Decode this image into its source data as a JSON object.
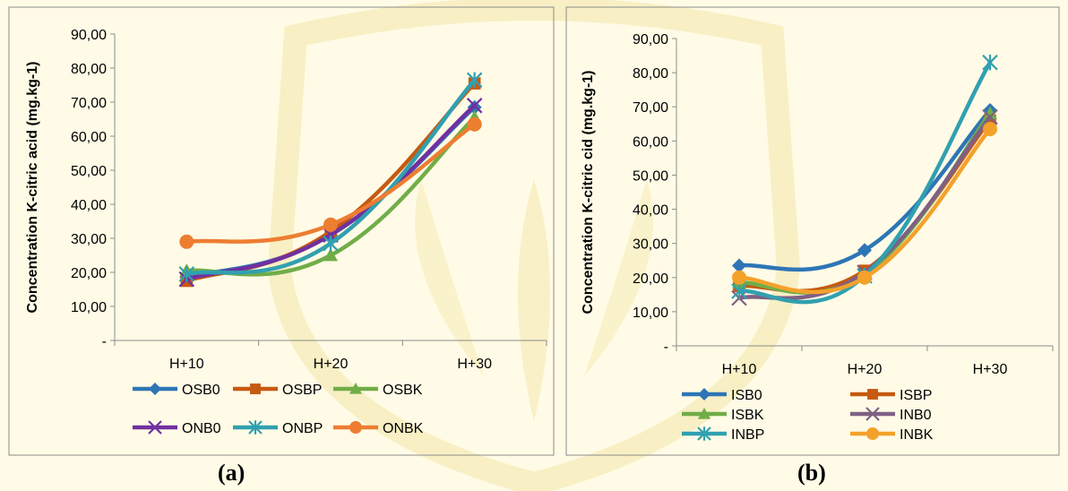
{
  "colors": {
    "background": "#fffbe6",
    "watermark": "#f3e6a8",
    "OSB0": "#2e75b6",
    "OSBP": "#c55a11",
    "OSBK": "#70ad47",
    "ONB0": "#7030a0",
    "ONBP": "#31a0b0",
    "ONBK": "#ed7d31",
    "ISB0": "#2e75b6",
    "ISBP": "#c55a11",
    "ISBK": "#70ad47",
    "INB0": "#7f6084",
    "INBP": "#31a0b0",
    "INBK": "#f4a12b"
  },
  "captions": {
    "a": "(a)",
    "b": "(b)"
  },
  "chart_data": [
    {
      "type": "line",
      "ylabel": "Concentration K-citric acid (mg.kg-1)",
      "xlabel": "",
      "categories": [
        "H+10",
        "H+20",
        "H+30"
      ],
      "ylim": [
        0,
        90
      ],
      "ytick_labels": [
        "-",
        "10,00",
        "20,00",
        "30,00",
        "40,00",
        "50,00",
        "60,00",
        "70,00",
        "80,00",
        "90,00"
      ],
      "legend_position": "bottom",
      "series": [
        {
          "name": "OSB0",
          "values": [
            18.5,
            31.0,
            68.5
          ],
          "marker": "diamond"
        },
        {
          "name": "OSBP",
          "values": [
            17.5,
            32.0,
            75.5
          ],
          "marker": "square"
        },
        {
          "name": "OSBK",
          "values": [
            20.5,
            25.0,
            65.5
          ],
          "marker": "triangle"
        },
        {
          "name": "ONB0",
          "values": [
            18.0,
            31.0,
            69.0
          ],
          "marker": "x"
        },
        {
          "name": "ONBP",
          "values": [
            19.5,
            28.5,
            76.5
          ],
          "marker": "star"
        },
        {
          "name": "ONBK",
          "values": [
            29.0,
            34.0,
            63.5
          ],
          "marker": "circle"
        }
      ]
    },
    {
      "type": "line",
      "ylabel": "Concentration K-citric cid (mg.kg-1)",
      "xlabel": "",
      "categories": [
        "H+10",
        "H+20",
        "H+30"
      ],
      "ylim": [
        0,
        90
      ],
      "ytick_labels": [
        "-",
        "10,00",
        "20,00",
        "30,00",
        "40,00",
        "50,00",
        "60,00",
        "70,00",
        "80,00",
        "90,00"
      ],
      "legend_position": "bottom",
      "series": [
        {
          "name": "ISB0",
          "values": [
            23.5,
            28.0,
            69.0
          ],
          "marker": "diamond"
        },
        {
          "name": "ISBP",
          "values": [
            17.5,
            22.0,
            66.0
          ],
          "marker": "square"
        },
        {
          "name": "ISBK",
          "values": [
            18.5,
            21.0,
            68.0
          ],
          "marker": "triangle"
        },
        {
          "name": "INB0",
          "values": [
            14.0,
            21.5,
            67.0
          ],
          "marker": "x"
        },
        {
          "name": "INBP",
          "values": [
            16.0,
            20.5,
            83.0
          ],
          "marker": "star"
        },
        {
          "name": "INBK",
          "values": [
            20.0,
            20.0,
            63.5
          ],
          "marker": "circle"
        }
      ]
    }
  ]
}
